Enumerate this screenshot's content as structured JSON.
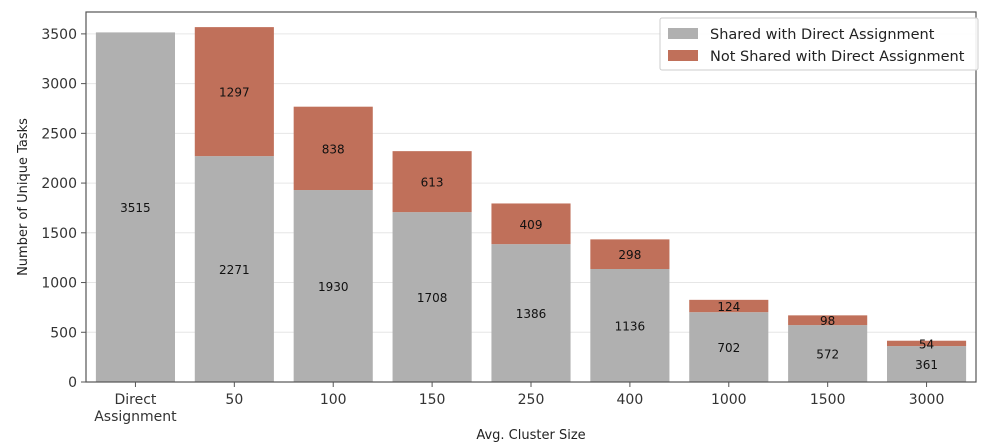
{
  "chart_data": {
    "type": "bar",
    "stacked": true,
    "categories": [
      "Direct\nAssignment",
      "50",
      "100",
      "150",
      "250",
      "400",
      "1000",
      "1500",
      "3000"
    ],
    "series": [
      {
        "name": "Shared with Direct Assignment",
        "color": "#b0b0b0",
        "values": [
          3515,
          2271,
          1930,
          1708,
          1386,
          1136,
          702,
          572,
          361
        ]
      },
      {
        "name": "Not Shared with Direct Assignment",
        "color": "#c0705a",
        "values": [
          0,
          1297,
          838,
          613,
          409,
          298,
          124,
          98,
          54
        ]
      }
    ],
    "xlabel": "Avg. Cluster Size",
    "ylabel": "Number of Unique Tasks",
    "ylim": [
      0,
      3720
    ],
    "yticks": [
      0,
      500,
      1000,
      1500,
      2000,
      2500,
      3000,
      3500
    ],
    "grid": "horizontal",
    "legend_position": "top-right"
  }
}
